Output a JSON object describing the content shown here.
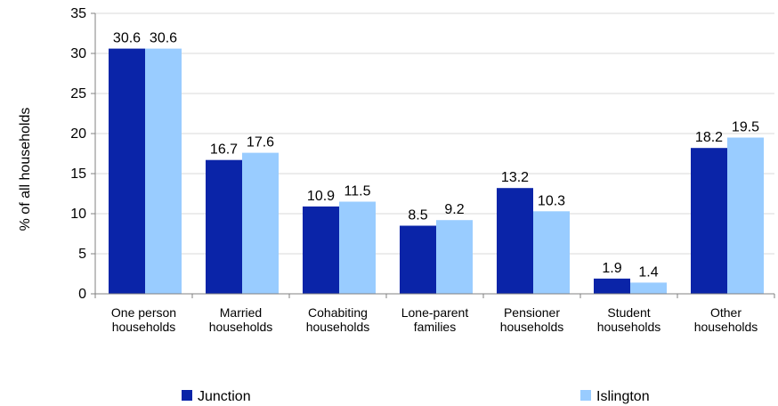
{
  "chart_data": {
    "type": "bar",
    "title": "",
    "xlabel": "",
    "ylabel": "% of all households",
    "ylim": [
      0,
      35
    ],
    "yticks": [
      0,
      5,
      10,
      15,
      20,
      25,
      30,
      35
    ],
    "grid": true,
    "legend_position": "bottom",
    "categories": [
      [
        "One person",
        "households"
      ],
      [
        "Married",
        "households"
      ],
      [
        "Cohabiting",
        "households"
      ],
      [
        "Lone-parent",
        "families"
      ],
      [
        "Pensioner",
        "households"
      ],
      [
        "Student",
        "households"
      ],
      [
        "Other",
        "households"
      ]
    ],
    "series": [
      {
        "name": "Junction",
        "color": "#0a24a8",
        "values": [
          30.6,
          16.7,
          10.9,
          8.5,
          13.2,
          1.9,
          18.2
        ]
      },
      {
        "name": "Islington",
        "color": "#99ccff",
        "values": [
          30.6,
          17.6,
          11.5,
          9.2,
          10.3,
          1.4,
          19.5
        ]
      }
    ]
  }
}
